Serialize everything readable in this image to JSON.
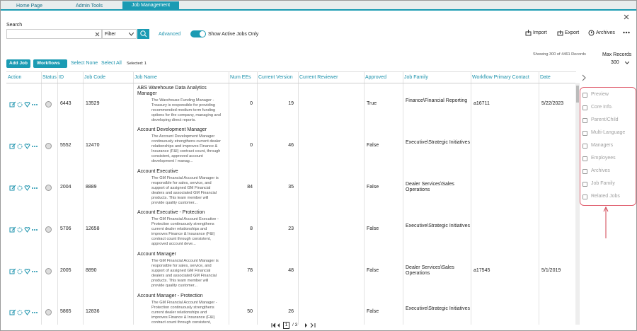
{
  "tabs": [
    "Home Page",
    "Admin Tools",
    "Job Management"
  ],
  "search": {
    "label": "Search",
    "filter": "Filter",
    "advanced": "Advanced",
    "toggle": "Show Active Jobs Only"
  },
  "actions": [
    "Import",
    "Export",
    "Archives"
  ],
  "toolbar": {
    "add_job": "Add Job",
    "workflows": "Workflows",
    "select_none": "Select None",
    "select_all": "Select All",
    "selected": "Selected: 1"
  },
  "records": {
    "showing": "Showing 300 of 4461 Records",
    "max_label": "Max Records",
    "max_value": "300"
  },
  "table": {
    "columns": [
      "Action",
      "Status",
      "ID",
      "Job Code",
      "Job Name",
      "Num EEs",
      "Current Version",
      "Current Reviewer",
      "Approved",
      "Job Family",
      "Workflow Primary Contact",
      "Date"
    ],
    "rows": [
      {
        "id": "6443",
        "code": "13529",
        "name": "ABS Warehouse Data Analytics Manager",
        "description": "The Warehouse Funding Manager - Treasury is responsible for providing recommended medium-term funding options for the company, managing and developing direct reports.",
        "num_ees": 0,
        "version": 19,
        "approved": "True",
        "family": "Finance\\Financial Reporting",
        "contact": "a16711",
        "date": "5/22/2023"
      },
      {
        "id": "5552",
        "code": "12470",
        "name": "Account Development Manager",
        "description": "The Account Development Manager continuously strengthens current dealer relationships and improves Finance & Insurance (F&I) contract count, through consistent, approved account development / manag...",
        "num_ees": 0,
        "version": 46,
        "approved": "False",
        "family": "Executive\\Strategic Initiatives"
      },
      {
        "id": "2004",
        "code": "8889",
        "name": "Account Executive",
        "description": "The GM Financial Account Manager is responsible for sales, service, and support of assigned GM Financial dealers and associated GM Financial products. This team member will provide quality customer...",
        "num_ees": 84,
        "version": 35,
        "approved": "False",
        "family": "Dealer Services\\Sales Operations"
      },
      {
        "id": "5706",
        "code": "12658",
        "name": "Account Executive - Protection",
        "description": "The GM Financial Account Executive - Protection continuously strengthens current dealer relationships and improves Finance & Insurance (F&I) contract count through consistent, approved account deve...",
        "num_ees": 8,
        "version": 23,
        "approved": "False",
        "family": "Executive\\Strategic Initiatives"
      },
      {
        "id": "2005",
        "code": "8890",
        "name": "Account Manager",
        "description": "The GM Financial Account Manager is responsible for sales, service, and support of assigned GM Financial dealers and associated GM Financial products. This team member will provide quality customer...",
        "num_ees": 78,
        "version": 48,
        "approved": "False",
        "family": "Dealer Services\\Sales Operations",
        "contact": "a17545",
        "date": "5/1/2019"
      },
      {
        "id": "5865",
        "code": "12836",
        "name": "Account Manager - Protection",
        "description": "The GM Financial Account Manager - Protection continuously strengthens current dealer relationships and improves Finance & Insurance (F&I) contract count through consistent, approved account...",
        "num_ees": 50,
        "version": 26,
        "approved": "False",
        "family": "Executive\\Strategic Initiatives"
      }
    ]
  },
  "side_menu": [
    "Preview",
    "Core Info.",
    "Parent/Child",
    "Multi-Language",
    "Managers",
    "Employees",
    "Archives",
    "Job Family",
    "Related Jobs"
  ],
  "pagination": {
    "page": "1",
    "total": "/ 3"
  }
}
